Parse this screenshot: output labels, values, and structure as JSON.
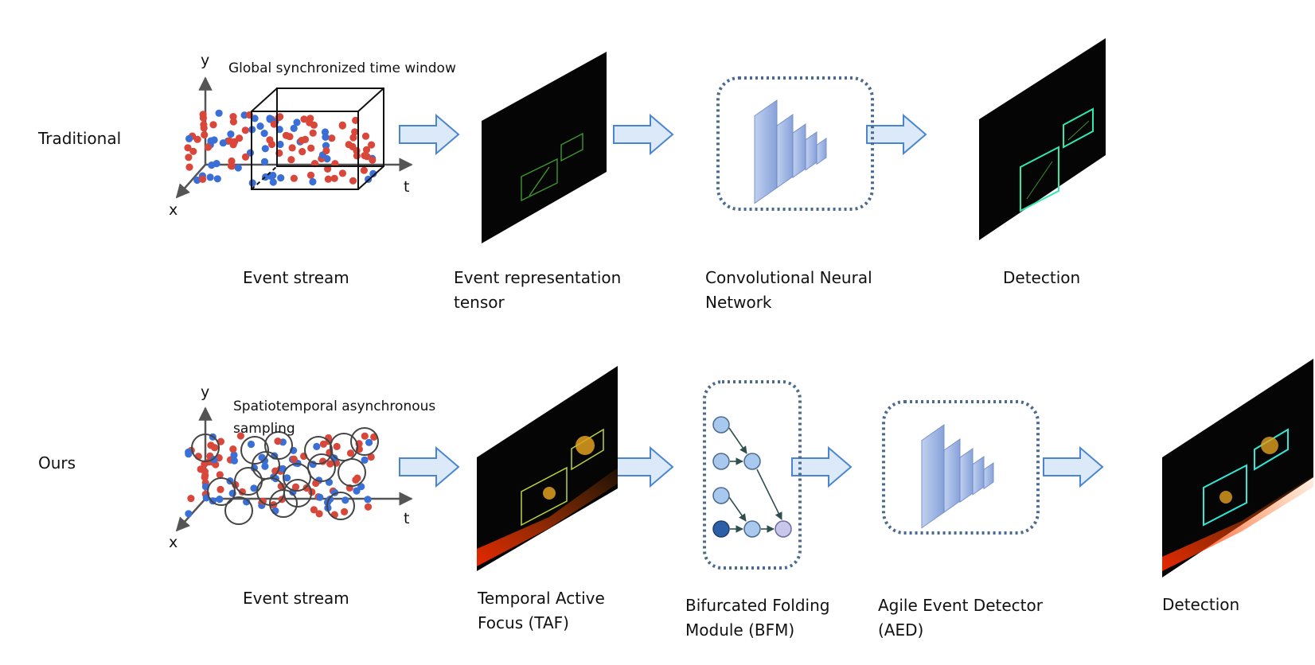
{
  "rows": {
    "traditional": {
      "row_label": "Traditional",
      "stream_annotation": "Global synchronized time window",
      "captions": {
        "event_stream": "Event stream",
        "representation_line1": "Event representation",
        "representation_line2": "tensor",
        "network_line1": "Convolutional Neural",
        "network_line2": "Network",
        "detection": "Detection"
      }
    },
    "ours": {
      "row_label": "Ours",
      "stream_annotation_line1": "Spatiotemporal asynchronous",
      "stream_annotation_line2": "sampling",
      "captions": {
        "event_stream": "Event stream",
        "taf_line1": "Temporal Active",
        "taf_line2": "Focus (TAF)",
        "bfm_line1": "Bifurcated Folding",
        "bfm_line2": "Module (BFM)",
        "aed_line1": "Agile Event Detector",
        "aed_line2": "(AED)",
        "detection": "Detection"
      }
    }
  },
  "axes": {
    "y": "y",
    "x": "x",
    "t": "t"
  },
  "colors": {
    "positive_event": "#d8473a",
    "negative_event": "#3a6fd8",
    "arrow_fill": "#dce9f9",
    "arrow_stroke": "#4a86d0",
    "dotted_box": "#4a6a8e",
    "cnn_layer": "#8aa6dc",
    "graph_node": "#a9c8ee",
    "graph_node_dark": "#2d5fa8",
    "graph_node_purple": "#c9c6ec",
    "edge": "#2f4f4f",
    "event_frame_bg": "#050505"
  },
  "icons": [
    "event-scatter-3d",
    "block-arrow-right",
    "cnn-stack-icon",
    "graph-module-icon",
    "event-frame-image",
    "detection-frame-image"
  ]
}
